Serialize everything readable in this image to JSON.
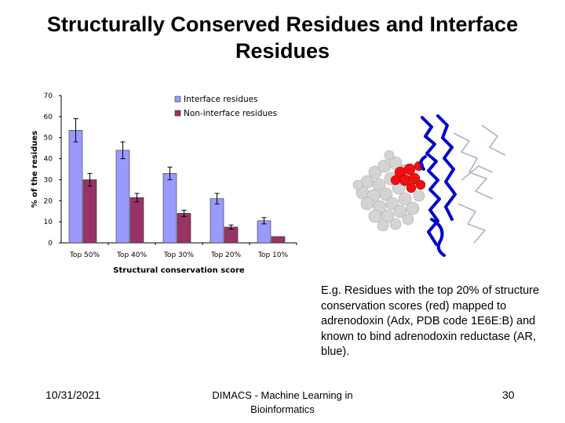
{
  "slide": {
    "title": "Structurally Conserved Residues and Interface Residues",
    "caption": "E.g. Residues with the top 20% of structure conservation scores (red) mapped to adrenodoxin (Adx, PDB code 1E6E:B) and known to bind adrenodoxin reductase (AR, blue).",
    "footer_date": "10/31/2021",
    "footer_center": "DIMACS - Machine Learning in Bioinformatics",
    "page_number": "30"
  },
  "chart_data": {
    "type": "bar",
    "categories": [
      "Top 50%",
      "Top 40%",
      "Top 30%",
      "Top 20%",
      "Top 10%"
    ],
    "series": [
      {
        "name": "Interface residues",
        "color": "#9999ff",
        "values": [
          53.5,
          44,
          33,
          21,
          10.5
        ],
        "errors": [
          5.5,
          4,
          3,
          2.5,
          1.5
        ]
      },
      {
        "name": "Non-interface residues",
        "color": "#993366",
        "values": [
          30,
          21.5,
          14,
          7.5,
          3
        ],
        "errors": [
          3,
          2,
          1.5,
          1,
          0
        ]
      }
    ],
    "xlabel": "Structural conservation score",
    "ylabel": "% of the residues",
    "ylim": [
      0,
      70
    ],
    "yticks": [
      0,
      10,
      20,
      30,
      40,
      50,
      60,
      70
    ],
    "legend_position": "top-right",
    "grid": false
  },
  "image": {
    "name": "adrenodoxin complex structure",
    "colors": {
      "interface": "#ff0000",
      "partner": "#0000cc",
      "adx": "#cccccc"
    }
  }
}
